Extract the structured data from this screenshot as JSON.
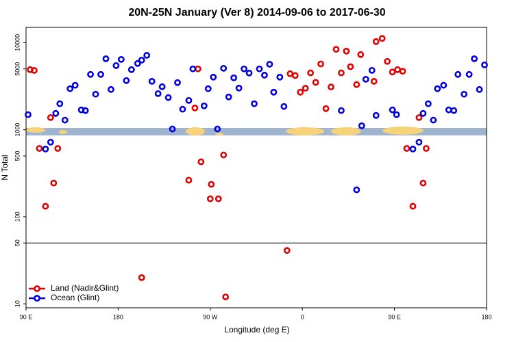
{
  "chart_data": {
    "type": "scatter",
    "title": "20N-25N January (Ver 8)   2014-09-06 to 2017-06-30",
    "xlabel": "Longitude (deg E)",
    "ylabel": "N Total",
    "xlim": [
      90,
      540
    ],
    "xticks": [
      {
        "value": 90,
        "label": "90 E"
      },
      {
        "value": 180,
        "label": "180"
      },
      {
        "value": 270,
        "label": "90 W"
      },
      {
        "value": 360,
        "label": "0"
      },
      {
        "value": 450,
        "label": "90 E"
      },
      {
        "value": 540,
        "label": "180"
      }
    ],
    "ylim": [
      9,
      15000
    ],
    "ylog": true,
    "yticks": [
      10,
      50,
      100,
      500,
      1000,
      5000,
      10000
    ],
    "legend": "lower left",
    "series": [
      {
        "name": "Land (Nadir&Glint)",
        "color": "#e00000",
        "x": [
          94,
          98,
          103,
          109,
          114,
          117,
          121,
          203,
          249,
          255,
          258,
          261,
          270,
          271,
          278,
          283,
          285,
          345,
          348,
          353,
          358,
          363,
          368,
          373,
          378,
          383,
          388,
          393,
          398,
          403,
          407,
          413,
          417,
          430,
          432,
          438,
          443,
          448,
          453,
          458,
          462,
          468,
          474,
          478,
          481
        ],
        "values": [
          4900,
          4800,
          610,
          132,
          1380,
          244,
          610,
          20,
          263,
          1780,
          5000,
          428,
          161,
          236,
          161,
          513,
          12,
          41,
          4400,
          4200,
          2700,
          3000,
          4500,
          3500,
          5700,
          1750,
          3100,
          8400,
          4500,
          8000,
          5300,
          3300,
          7300,
          3600,
          10300,
          11200,
          6100,
          4600,
          4900,
          4700,
          610,
          132,
          1380,
          244,
          610
        ]
      },
      {
        "name": "Ocean (Glint)",
        "color": "#0000e0",
        "x": [
          92,
          109,
          114,
          119,
          123,
          128,
          133,
          138,
          144,
          148,
          153,
          158,
          163,
          168,
          173,
          178,
          183,
          188,
          193,
          199,
          203,
          208,
          213,
          219,
          223,
          229,
          233,
          238,
          243,
          249,
          253,
          264,
          268,
          273,
          277,
          283,
          288,
          293,
          298,
          303,
          308,
          313,
          318,
          323,
          328,
          332,
          338,
          342,
          398,
          413,
          418,
          422,
          428,
          432,
          448,
          452,
          468,
          474,
          478,
          483,
          488,
          492,
          498,
          503,
          508,
          512,
          518,
          523,
          528,
          533,
          538
        ],
        "values": [
          1490,
          600,
          720,
          1540,
          1990,
          1290,
          2960,
          3240,
          1690,
          1660,
          4320,
          2560,
          4320,
          6540,
          2900,
          5460,
          6420,
          3670,
          4900,
          5770,
          6310,
          7160,
          3600,
          2600,
          3120,
          2340,
          1020,
          3480,
          1720,
          2170,
          5000,
          1880,
          2960,
          4020,
          1020,
          5080,
          2380,
          3950,
          3010,
          5000,
          4480,
          1990,
          5000,
          4240,
          5660,
          2700,
          4020,
          1850,
          1660,
          204,
          1110,
          3800,
          4810,
          1460,
          1690,
          1490,
          600,
          720,
          1540,
          1990,
          1290,
          2960,
          3240,
          1690,
          1660,
          4320,
          2560,
          4320,
          6540,
          2900,
          5560
        ]
      }
    ]
  }
}
